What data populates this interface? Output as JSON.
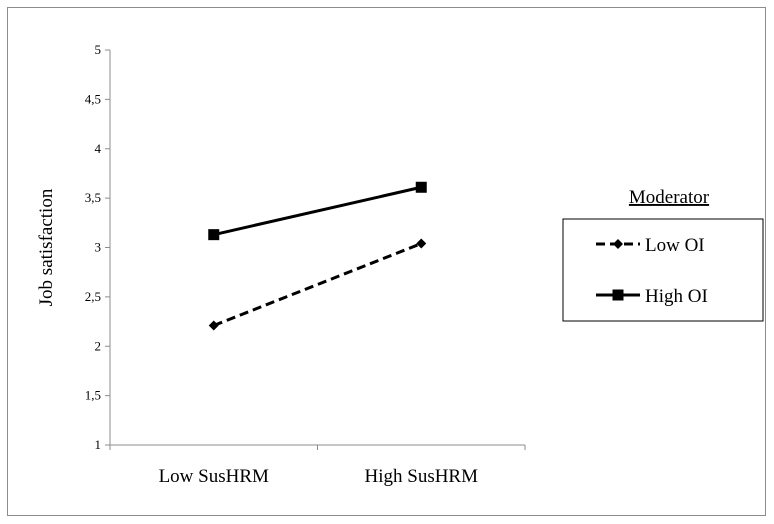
{
  "chart_data": {
    "type": "line",
    "categories": [
      "Low SusHRM",
      "High SusHRM"
    ],
    "series": [
      {
        "name": "Low OI",
        "values": [
          2.21,
          3.04
        ],
        "style": "dashed",
        "marker": "diamond",
        "color": "#000000"
      },
      {
        "name": "High OI",
        "values": [
          3.13,
          3.61
        ],
        "style": "solid",
        "marker": "square",
        "color": "#000000"
      }
    ],
    "xlabel": "",
    "ylabel": "Job satisfaction",
    "ylim": [
      1,
      5
    ],
    "yticks": [
      "1",
      "1,5",
      "2",
      "2,5",
      "3",
      "3,5",
      "4",
      "4,5",
      "5"
    ],
    "grid": false,
    "legend": {
      "title": "Moderator",
      "position": "right"
    }
  }
}
